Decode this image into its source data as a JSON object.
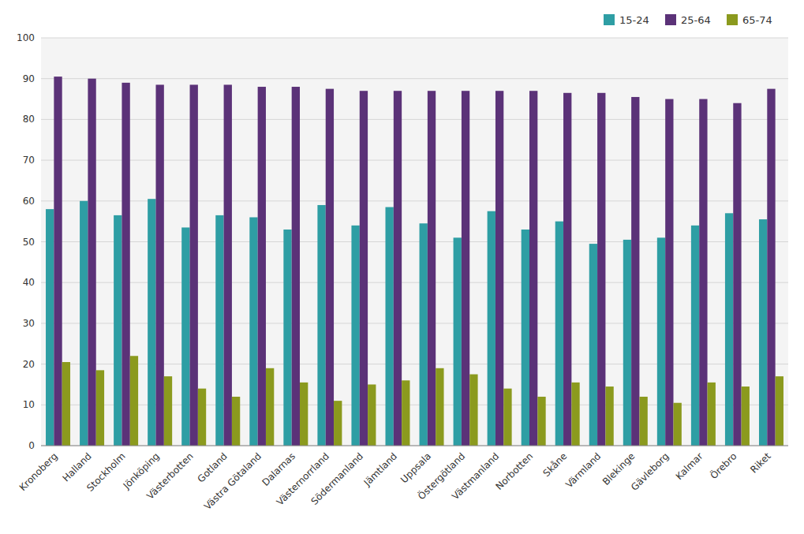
{
  "chart_data": {
    "type": "bar",
    "categories": [
      "Kronoberg",
      "Halland",
      "Stockholm",
      "Jönköping",
      "Västerbotten",
      "Gotland",
      "Västra Götaland",
      "Dalarnas",
      "Västernorrland",
      "Södermanland",
      "Jämtland",
      "Uppsala",
      "Östergötland",
      "Västmanland",
      "Norbotten",
      "Skåne",
      "Värmland",
      "Blekinge",
      "Gävleborg",
      "Kalmar",
      "Örebro",
      "Riket"
    ],
    "series": [
      {
        "name": "15-24",
        "color": "#2e9ea4",
        "values": [
          58,
          60,
          56.5,
          60.5,
          53.5,
          56.5,
          56,
          53,
          59,
          54,
          58.5,
          54.5,
          51,
          57.5,
          53,
          55,
          49.5,
          50.5,
          51,
          54,
          57,
          55.5
        ]
      },
      {
        "name": "25-64",
        "color": "#5b3278",
        "values": [
          90.5,
          90,
          89,
          88.5,
          88.5,
          88.5,
          88,
          88,
          87.5,
          87,
          87,
          87,
          87,
          87,
          87,
          86.5,
          86.5,
          85.5,
          85,
          85,
          84,
          87.5
        ]
      },
      {
        "name": "65-74",
        "color": "#8b9a1e",
        "values": [
          20.5,
          18.5,
          22,
          17,
          14,
          12,
          19,
          15.5,
          11,
          15,
          16,
          19,
          17.5,
          14,
          12,
          15.5,
          14.5,
          12,
          10.5,
          15.5,
          14.5,
          17
        ]
      }
    ],
    "ylim": [
      0,
      100
    ],
    "yticks": [
      0,
      10,
      20,
      30,
      40,
      50,
      60,
      70,
      80,
      90,
      100
    ],
    "grid": true,
    "legend": "upper right"
  }
}
